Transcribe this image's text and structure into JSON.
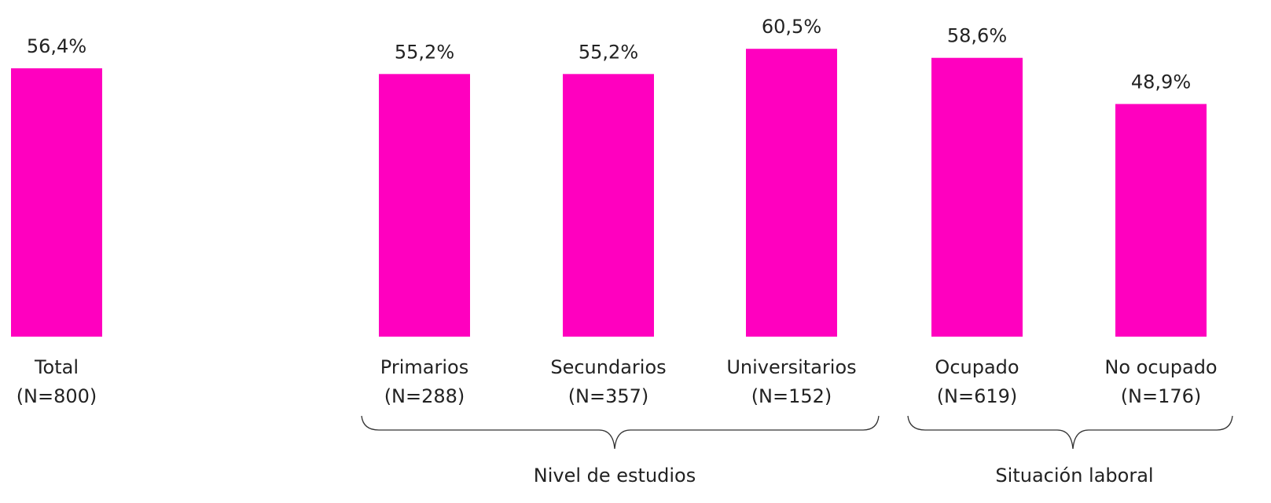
{
  "chart_data": {
    "type": "bar",
    "categories": [
      "Total",
      "Primarios",
      "Secundarios",
      "Universitarios",
      "Ocupado",
      "No ocupado"
    ],
    "sample_labels": [
      "(N=800)",
      "(N=288)",
      "(N=357)",
      "(N=152)",
      "(N=619)",
      "(N=176)"
    ],
    "values": [
      56.4,
      55.2,
      55.2,
      60.5,
      58.6,
      48.9
    ],
    "value_labels": [
      "56,4%",
      "55,2%",
      "55,2%",
      "60,5%",
      "58,6%",
      "48,9%"
    ],
    "color": "#ff00bf",
    "ylim": [
      0,
      70
    ],
    "groups": [
      "Nivel de estudios",
      "Situación laboral"
    ]
  }
}
